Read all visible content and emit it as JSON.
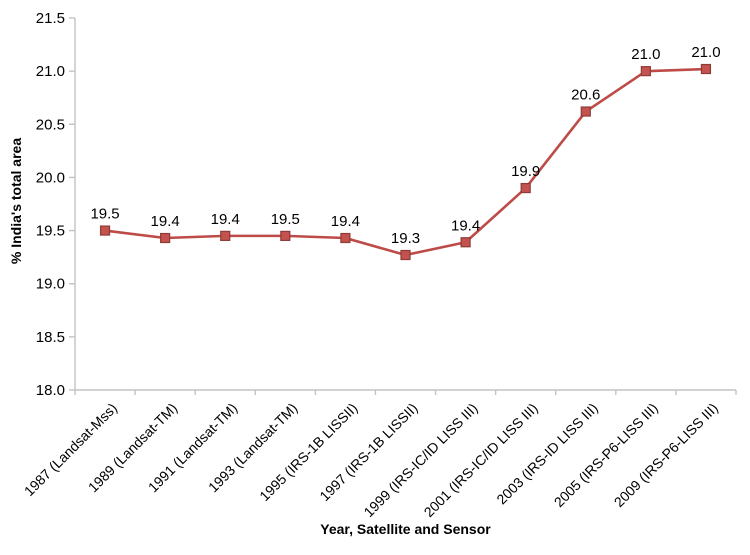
{
  "chart_data": {
    "type": "line",
    "title": "",
    "xlabel": "Year, Satellite and Sensor",
    "ylabel": "% India's total area",
    "categories": [
      "1987 (Landsat-Mss)",
      "1989 (Landsat-TM)",
      "1991 (Landsat-TM)",
      "1993 (Landsat-TM)",
      "1995 (IRS-1B LISSII)",
      "1997 (IRS-1B LISSII)",
      "1999 (IRS-IC/ID LISS III)",
      "2001 (IRS-IC/ID LISS III)",
      "2003 (IRS-ID LISS III)",
      "2005 (IRS-P6-LISS III)",
      "2009 (IRS-P6-LISS III)"
    ],
    "values": [
      19.5,
      19.43,
      19.45,
      19.45,
      19.43,
      19.27,
      19.39,
      19.9,
      20.62,
      21.0,
      21.02
    ],
    "point_labels": [
      "19.5",
      "19.4",
      "19.4",
      "19.5",
      "19.4",
      "19.3",
      "19.4",
      "19.9",
      "20.6",
      "21.0",
      "21.0"
    ],
    "ylim": [
      18.0,
      21.5
    ],
    "y_ticks": [
      "18.0",
      "18.5",
      "19.0",
      "19.5",
      "20.0",
      "20.5",
      "21.0",
      "21.5"
    ],
    "grid": false,
    "legend": false,
    "marker": "square",
    "colors": {
      "line": "#BE4B48",
      "marker_fill": "#C4524E",
      "marker_border": "#8E3B38",
      "axis": "#C3C3C3",
      "text": "#000000"
    }
  }
}
